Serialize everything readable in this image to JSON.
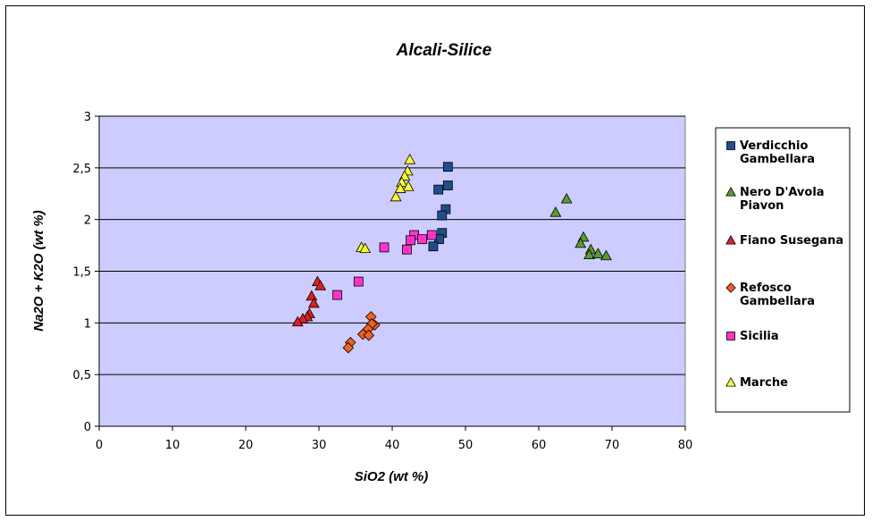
{
  "chart_data": {
    "type": "scatter",
    "title": "Alcali-Silice",
    "xlabel": "SiO2 (wt %)",
    "ylabel": "Na2O + K2O (wt %)",
    "xlim": [
      0,
      80
    ],
    "ylim": [
      0,
      3
    ],
    "x_ticks": [
      "0",
      "10",
      "20",
      "30",
      "40",
      "50",
      "60",
      "70",
      "80"
    ],
    "y_ticks": [
      "0",
      "0,5",
      "1",
      "1,5",
      "2",
      "2,5",
      "3"
    ],
    "grid": "horizontal",
    "legend_position": "right",
    "plot_background": "#ccccff",
    "series": [
      {
        "name": "Verdicchio Gambellara",
        "legend_lines": [
          "Verdicchio",
          "Gambellara"
        ],
        "marker": "square",
        "color": "#1f4e8c",
        "points": [
          [
            47.6,
            2.51
          ],
          [
            47.6,
            2.33
          ],
          [
            46.3,
            2.29
          ],
          [
            47.3,
            2.1
          ],
          [
            46.8,
            2.04
          ],
          [
            46.8,
            1.87
          ],
          [
            46.4,
            1.81
          ],
          [
            45.6,
            1.74
          ]
        ]
      },
      {
        "name": "Nero D'Avola Piavon",
        "legend_lines": [
          "Nero D'Avola",
          "Piavon"
        ],
        "marker": "triangle",
        "color": "#5a9a2e",
        "points": [
          [
            63.8,
            2.2
          ],
          [
            62.3,
            2.07
          ],
          [
            66.1,
            1.83
          ],
          [
            65.7,
            1.77
          ],
          [
            67.1,
            1.71
          ],
          [
            66.9,
            1.66
          ],
          [
            68.1,
            1.67
          ],
          [
            69.2,
            1.65
          ]
        ]
      },
      {
        "name": "Fiano Susegana",
        "legend_lines": [
          "Fiano Susegana"
        ],
        "marker": "triangle",
        "color": "#e02020",
        "points": [
          [
            29.8,
            1.4
          ],
          [
            30.2,
            1.36
          ],
          [
            29.0,
            1.26
          ],
          [
            29.3,
            1.19
          ],
          [
            28.7,
            1.09
          ],
          [
            28.4,
            1.06
          ],
          [
            27.8,
            1.04
          ],
          [
            27.1,
            1.01
          ]
        ]
      },
      {
        "name": "Refosco Gambellara",
        "legend_lines": [
          "Refosco",
          "Gambellara"
        ],
        "marker": "diamond",
        "color": "#f06020",
        "points": [
          [
            37.1,
            1.06
          ],
          [
            37.6,
            0.98
          ],
          [
            37.2,
            0.99
          ],
          [
            36.7,
            0.94
          ],
          [
            36.0,
            0.89
          ],
          [
            36.8,
            0.88
          ],
          [
            34.3,
            0.81
          ],
          [
            34.0,
            0.76
          ]
        ]
      },
      {
        "name": "Sicilia",
        "legend_lines": [
          "Sicilia"
        ],
        "marker": "square",
        "color": "#ff33cc",
        "points": [
          [
            43.0,
            1.85
          ],
          [
            45.4,
            1.85
          ],
          [
            44.1,
            1.81
          ],
          [
            42.5,
            1.8
          ],
          [
            38.9,
            1.73
          ],
          [
            42.0,
            1.71
          ],
          [
            35.4,
            1.4
          ],
          [
            32.5,
            1.27
          ]
        ]
      },
      {
        "name": "Marche",
        "legend_lines": [
          "Marche"
        ],
        "marker": "triangle",
        "color": "#ffff33",
        "points": [
          [
            42.4,
            2.58
          ],
          [
            42.1,
            2.47
          ],
          [
            41.7,
            2.42
          ],
          [
            41.3,
            2.36
          ],
          [
            42.2,
            2.32
          ],
          [
            41.1,
            2.3
          ],
          [
            40.5,
            2.22
          ],
          [
            35.8,
            1.73
          ],
          [
            36.3,
            1.72
          ]
        ]
      }
    ]
  }
}
